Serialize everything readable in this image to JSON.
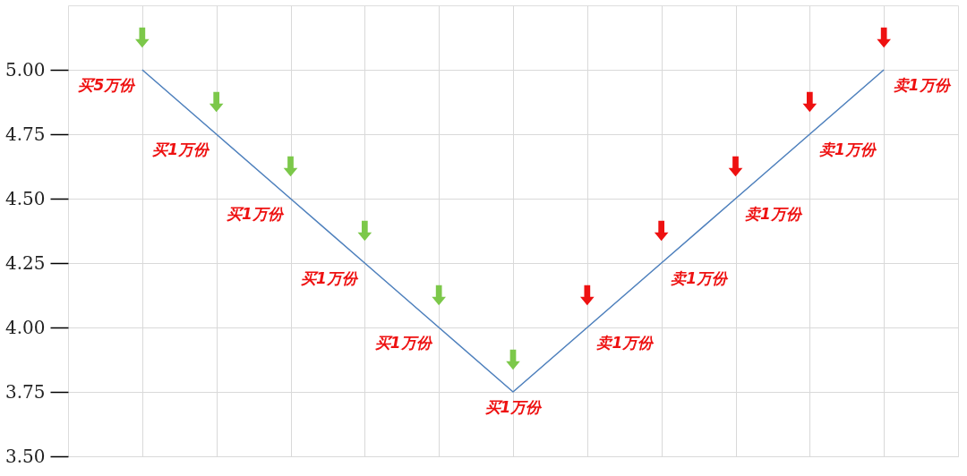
{
  "chart_data": {
    "type": "line",
    "categories": [
      null,
      null,
      null,
      null,
      null,
      null,
      null,
      null,
      null,
      null,
      null
    ],
    "series": [
      {
        "color": "#4f81bd",
        "values": [
          5.0,
          4.75,
          4.5,
          4.25,
          4.0,
          3.75,
          4.0,
          4.25,
          4.5,
          4.75,
          5.0
        ],
        "colors": [
          "#7cc84a",
          "#7cc84a",
          "#7cc84a",
          "#7cc84a",
          "#7cc84a",
          "#7cc84a",
          "#ee1111",
          "#ee1111",
          "#ee1111",
          "#ee1111",
          "#ee1111"
        ]
      }
    ],
    "ylim": [
      3.5,
      5.25
    ],
    "yticks": [
      {
        "value": 3.5,
        "label": "3.50"
      },
      {
        "value": 3.75,
        "label": "3.75"
      },
      {
        "value": 4.0,
        "label": "4.00"
      },
      {
        "value": 4.25,
        "label": "4.25"
      },
      {
        "value": 4.5,
        "label": "4.50"
      },
      {
        "value": 4.75,
        "label": "4.75"
      },
      {
        "value": 5.0,
        "label": "5.00"
      }
    ],
    "grid": true,
    "tick_labels": "y",
    "marker": "none",
    "line_style": "solid",
    "annotations": [
      "买5万份",
      "买1万份",
      "买1万份",
      "买1万份",
      "买1万份",
      "买1万份",
      "卖1万份",
      "卖1万份",
      "卖1万份",
      "卖1万份",
      "卖1万份"
    ]
  }
}
